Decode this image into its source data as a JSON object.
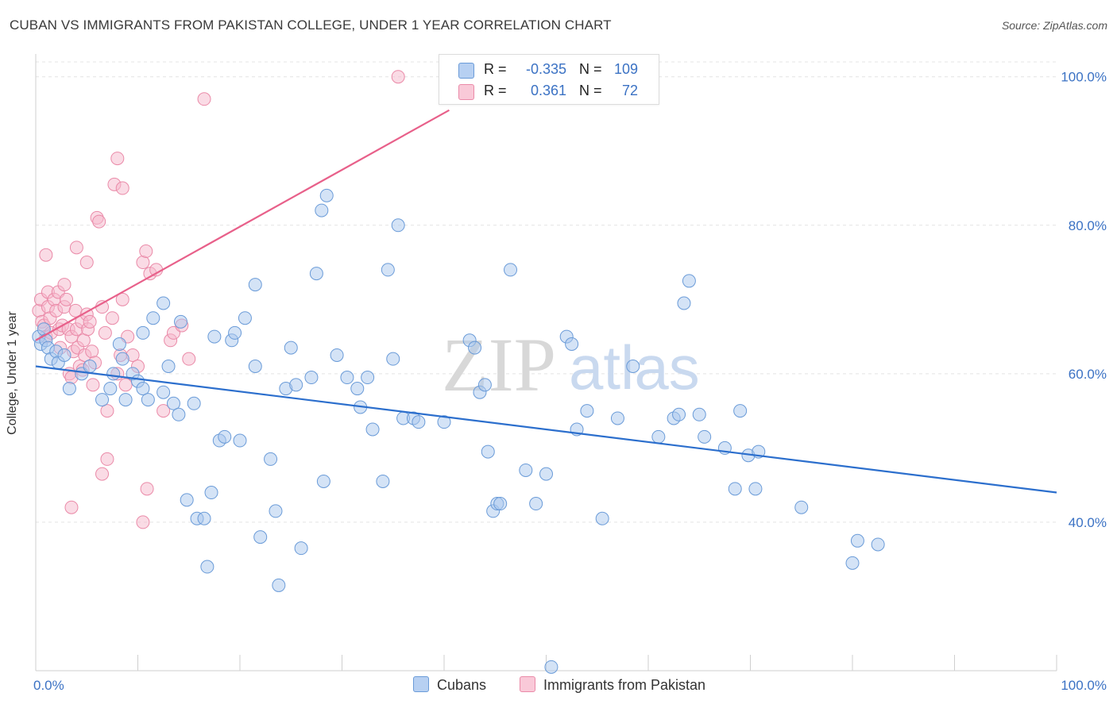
{
  "header": {
    "title": "CUBAN VS IMMIGRANTS FROM PAKISTAN COLLEGE, UNDER 1 YEAR CORRELATION CHART",
    "source": "Source: ZipAtlas.com"
  },
  "watermark": {
    "zip": "ZIP",
    "atlas": "atlas"
  },
  "legend_top": {
    "rows": [
      {
        "r_label": "R =",
        "r_value": "-0.335",
        "n_label": "N =",
        "n_value": "109"
      },
      {
        "r_label": "R =",
        "r_value": "0.361",
        "n_label": "N =",
        "n_value": "72"
      }
    ]
  },
  "legend_bottom": {
    "cubans": "Cubans",
    "pakistan": "Immigrants from Pakistan"
  },
  "colors": {
    "blue_fill": "#a9c7ee",
    "blue_stroke": "#6a9bd8",
    "blue_line": "#2c6fcd",
    "pink_fill": "#f6b8cb",
    "pink_stroke": "#ea8aa8",
    "pink_line": "#e8608a",
    "tick_text": "#3b72c4",
    "grid": "#e4e4e4"
  },
  "chart_data": {
    "type": "scatter",
    "title": "CUBAN VS IMMIGRANTS FROM PAKISTAN COLLEGE, UNDER 1 YEAR CORRELATION CHART",
    "xlabel": "",
    "ylabel": "College, Under 1 year",
    "xlim": [
      0,
      100
    ],
    "ylim": [
      20,
      102
    ],
    "x_tick_labels": [
      {
        "value": 0,
        "label": "0.0%"
      },
      {
        "value": 100,
        "label": "100.0%"
      }
    ],
    "y_tick_labels": [
      {
        "value": 40,
        "label": "40.0%"
      },
      {
        "value": 60,
        "label": "60.0%"
      },
      {
        "value": 80,
        "label": "80.0%"
      },
      {
        "value": 100,
        "label": "100.0%"
      }
    ],
    "series": [
      {
        "name": "Cubans",
        "r": -0.335,
        "n": 109,
        "trend": {
          "x": [
            0,
            100
          ],
          "y": [
            61.0,
            44.0
          ]
        },
        "points": [
          [
            0.3,
            65.0
          ],
          [
            0.5,
            64.0
          ],
          [
            0.8,
            66.0
          ],
          [
            1.0,
            64.5
          ],
          [
            1.2,
            63.5
          ],
          [
            1.5,
            62.0
          ],
          [
            2.0,
            63.0
          ],
          [
            2.2,
            61.5
          ],
          [
            2.8,
            62.5
          ],
          [
            3.3,
            58.0
          ],
          [
            4.5,
            60.0
          ],
          [
            5.3,
            61.0
          ],
          [
            6.5,
            56.5
          ],
          [
            7.3,
            58.0
          ],
          [
            7.6,
            60.0
          ],
          [
            8.2,
            64.0
          ],
          [
            8.5,
            62.0
          ],
          [
            8.8,
            56.5
          ],
          [
            9.5,
            60.0
          ],
          [
            10.0,
            59.0
          ],
          [
            10.5,
            58.0
          ],
          [
            11.0,
            56.5
          ],
          [
            10.5,
            65.5
          ],
          [
            11.5,
            67.5
          ],
          [
            12.5,
            69.5
          ],
          [
            12.5,
            57.5
          ],
          [
            13.0,
            61.0
          ],
          [
            13.5,
            56.0
          ],
          [
            14.0,
            54.5
          ],
          [
            14.2,
            67.0
          ],
          [
            14.8,
            43.0
          ],
          [
            15.5,
            56.0
          ],
          [
            15.8,
            40.5
          ],
          [
            16.5,
            40.5
          ],
          [
            16.8,
            34.0
          ],
          [
            17.2,
            44.0
          ],
          [
            17.5,
            65.0
          ],
          [
            18.0,
            51.0
          ],
          [
            18.5,
            51.5
          ],
          [
            19.2,
            64.5
          ],
          [
            19.5,
            65.5
          ],
          [
            20.0,
            51.0
          ],
          [
            20.5,
            67.5
          ],
          [
            21.5,
            72.0
          ],
          [
            21.5,
            61.0
          ],
          [
            22.0,
            38.0
          ],
          [
            23.0,
            48.5
          ],
          [
            23.5,
            41.5
          ],
          [
            23.8,
            31.5
          ],
          [
            24.5,
            58.0
          ],
          [
            25.0,
            63.5
          ],
          [
            25.5,
            58.5
          ],
          [
            26.0,
            36.5
          ],
          [
            27.0,
            59.5
          ],
          [
            27.5,
            73.5
          ],
          [
            28.0,
            82.0
          ],
          [
            28.5,
            84.0
          ],
          [
            28.2,
            45.5
          ],
          [
            29.5,
            62.5
          ],
          [
            30.5,
            59.5
          ],
          [
            31.5,
            58.0
          ],
          [
            31.8,
            55.5
          ],
          [
            32.5,
            59.5
          ],
          [
            33.0,
            52.5
          ],
          [
            34.0,
            45.5
          ],
          [
            34.5,
            74.0
          ],
          [
            35.0,
            62.0
          ],
          [
            35.5,
            80.0
          ],
          [
            36.0,
            54.0
          ],
          [
            37.0,
            54.0
          ],
          [
            37.5,
            53.5
          ],
          [
            40.0,
            53.5
          ],
          [
            42.5,
            64.5
          ],
          [
            43.0,
            63.5
          ],
          [
            43.5,
            57.5
          ],
          [
            44.0,
            58.5
          ],
          [
            44.3,
            49.5
          ],
          [
            44.8,
            41.5
          ],
          [
            45.2,
            42.5
          ],
          [
            45.5,
            42.5
          ],
          [
            46.5,
            74.0
          ],
          [
            48.0,
            47.0
          ],
          [
            49.0,
            42.5
          ],
          [
            50.0,
            46.5
          ],
          [
            52.0,
            65.0
          ],
          [
            52.5,
            64.0
          ],
          [
            53.0,
            52.5
          ],
          [
            54.0,
            55.0
          ],
          [
            55.5,
            40.5
          ],
          [
            57.0,
            54.0
          ],
          [
            58.5,
            61.0
          ],
          [
            61.0,
            51.5
          ],
          [
            62.5,
            54.0
          ],
          [
            63.0,
            54.5
          ],
          [
            63.5,
            69.5
          ],
          [
            64.0,
            72.5
          ],
          [
            65.0,
            54.5
          ],
          [
            65.5,
            51.5
          ],
          [
            67.5,
            50.0
          ],
          [
            68.5,
            44.5
          ],
          [
            69.0,
            55.0
          ],
          [
            69.8,
            49.0
          ],
          [
            70.5,
            44.5
          ],
          [
            70.8,
            49.5
          ],
          [
            75.0,
            42.0
          ],
          [
            80.0,
            34.5
          ],
          [
            80.5,
            37.5
          ],
          [
            82.5,
            37.0
          ],
          [
            50.5,
            20.5
          ]
        ]
      },
      {
        "name": "Immigrants from Pakistan",
        "r": 0.361,
        "n": 72,
        "trend": {
          "x": [
            0,
            40.5
          ],
          "y": [
            64.5,
            95.5
          ]
        },
        "points": [
          [
            0.3,
            68.5
          ],
          [
            0.5,
            70.0
          ],
          [
            0.6,
            67.0
          ],
          [
            0.8,
            66.5
          ],
          [
            1.0,
            65.0
          ],
          [
            1.2,
            69.0
          ],
          [
            1.2,
            71.0
          ],
          [
            1.4,
            67.5
          ],
          [
            1.5,
            65.5
          ],
          [
            1.8,
            70.0
          ],
          [
            2.0,
            68.5
          ],
          [
            2.2,
            71.0
          ],
          [
            2.3,
            66.0
          ],
          [
            2.4,
            63.5
          ],
          [
            2.6,
            66.5
          ],
          [
            2.8,
            72.0
          ],
          [
            2.8,
            69.0
          ],
          [
            3.0,
            70.0
          ],
          [
            3.2,
            66.0
          ],
          [
            3.3,
            60.0
          ],
          [
            3.5,
            59.5
          ],
          [
            3.5,
            65.0
          ],
          [
            3.7,
            63.0
          ],
          [
            3.9,
            68.5
          ],
          [
            4.0,
            66.0
          ],
          [
            4.1,
            63.5
          ],
          [
            4.3,
            61.0
          ],
          [
            4.5,
            67.0
          ],
          [
            4.7,
            64.5
          ],
          [
            4.8,
            62.5
          ],
          [
            5.0,
            68.0
          ],
          [
            5.1,
            66.0
          ],
          [
            5.3,
            67.0
          ],
          [
            5.5,
            63.0
          ],
          [
            5.6,
            58.5
          ],
          [
            5.8,
            61.5
          ],
          [
            6.0,
            81.0
          ],
          [
            6.2,
            80.5
          ],
          [
            6.5,
            69.0
          ],
          [
            6.8,
            65.5
          ],
          [
            7.0,
            48.5
          ],
          [
            7.0,
            55.0
          ],
          [
            7.5,
            67.5
          ],
          [
            7.7,
            85.5
          ],
          [
            8.0,
            60.0
          ],
          [
            8.3,
            62.5
          ],
          [
            8.5,
            70.0
          ],
          [
            8.8,
            58.5
          ],
          [
            9.0,
            65.0
          ],
          [
            9.5,
            62.5
          ],
          [
            10.0,
            61.0
          ],
          [
            10.5,
            75.0
          ],
          [
            10.8,
            76.5
          ],
          [
            11.2,
            73.5
          ],
          [
            11.8,
            74.0
          ],
          [
            12.5,
            55.0
          ],
          [
            13.2,
            64.5
          ],
          [
            13.5,
            65.5
          ],
          [
            14.3,
            66.5
          ],
          [
            15.0,
            62.0
          ],
          [
            16.5,
            97.0
          ],
          [
            35.5,
            100.0
          ],
          [
            10.5,
            40.0
          ],
          [
            10.9,
            44.5
          ],
          [
            6.5,
            46.5
          ],
          [
            3.5,
            42.0
          ],
          [
            4.0,
            77.0
          ],
          [
            5.0,
            75.0
          ],
          [
            8.0,
            89.0
          ],
          [
            8.5,
            85.0
          ],
          [
            1.0,
            76.0
          ],
          [
            4.6,
            60.5
          ]
        ]
      }
    ]
  }
}
